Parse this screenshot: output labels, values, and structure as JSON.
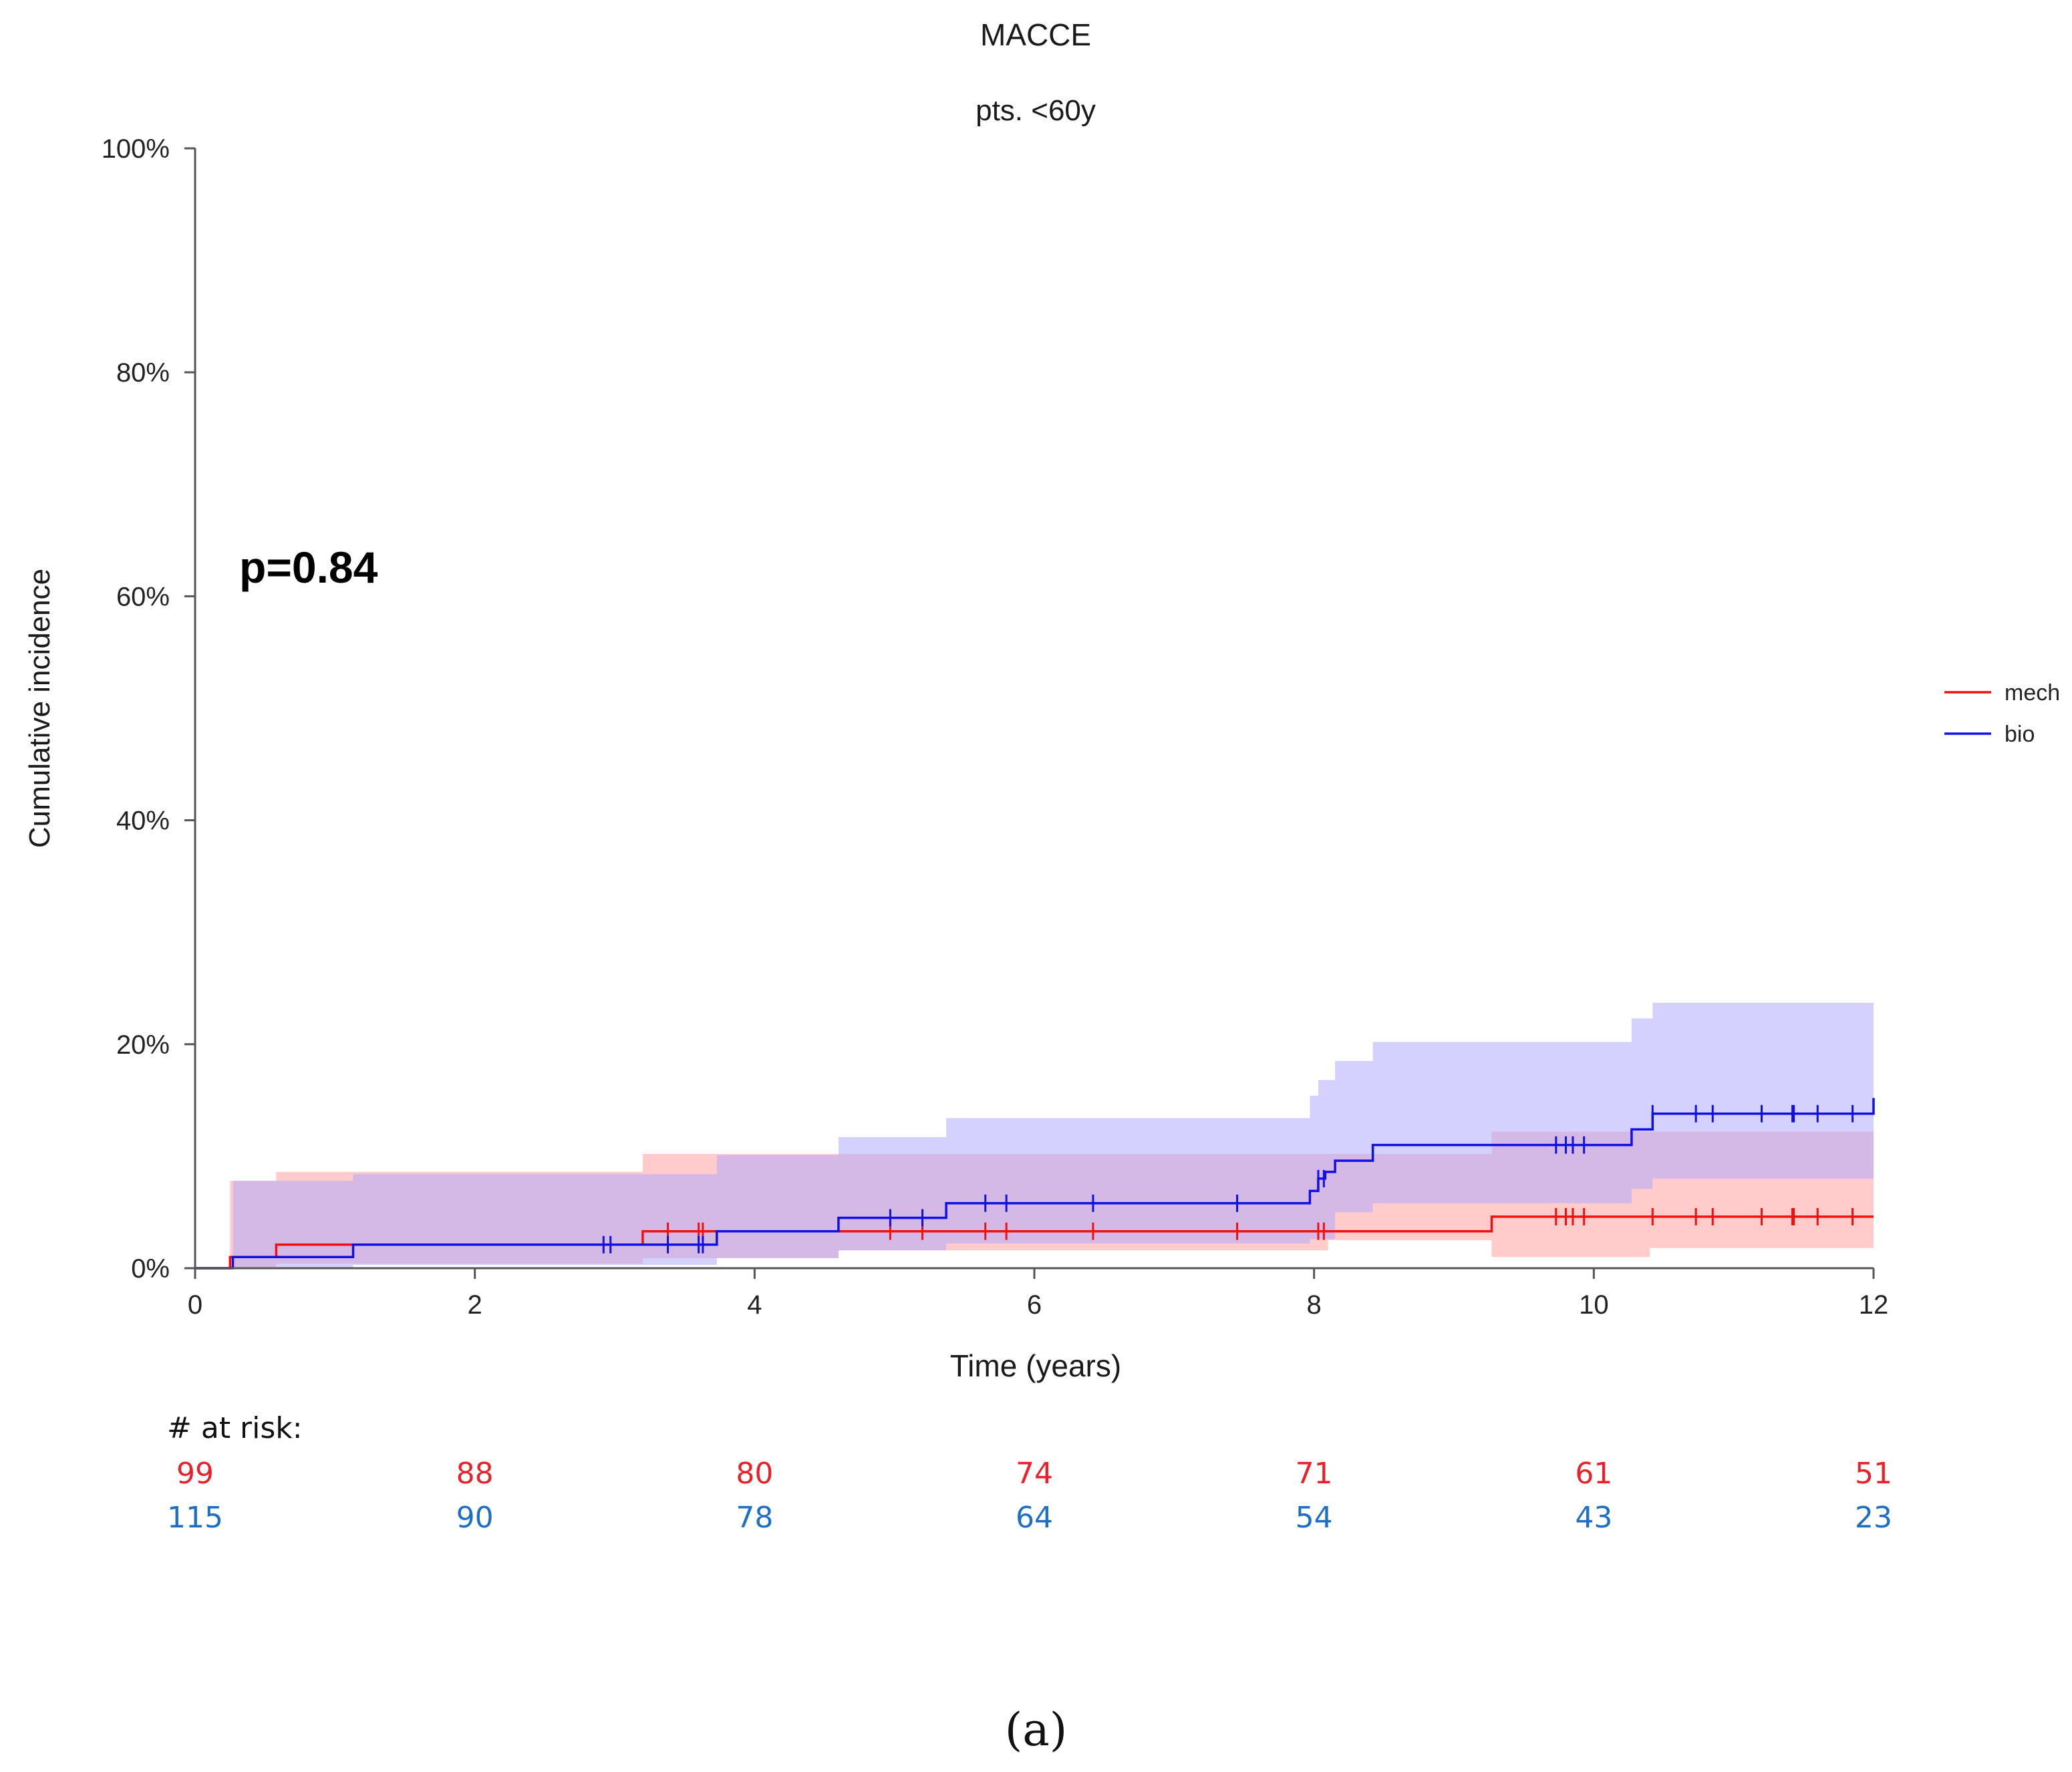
{
  "chart_data": {
    "type": "line",
    "subtype": "cumulative-incidence-step",
    "title": "MACCE",
    "subtitle": "pts. <60y",
    "xlabel": "Time (years)",
    "ylabel": "Cumulative incidence",
    "xlim": [
      0,
      12
    ],
    "ylim": [
      0,
      100
    ],
    "x_ticks": [
      0,
      2,
      4,
      6,
      8,
      10,
      12
    ],
    "y_ticks": [
      0,
      20,
      40,
      60,
      80,
      100
    ],
    "y_tick_labels": [
      "0%",
      "20%",
      "40%",
      "60%",
      "80%",
      "100%"
    ],
    "annotation": "p=0.84",
    "legend": {
      "position": "right",
      "entries": [
        "mech",
        "bio"
      ]
    },
    "series": [
      {
        "name": "mech",
        "color": "#f01010",
        "band_color": "#ffa0a0",
        "steps": [
          [
            0,
            0
          ],
          [
            0.25,
            1.0
          ],
          [
            0.58,
            2.1
          ],
          [
            3.2,
            3.3
          ],
          [
            9.27,
            4.6
          ],
          [
            12,
            4.6
          ]
        ],
        "ci_upper": [
          [
            0,
            0
          ],
          [
            0.25,
            7.8
          ],
          [
            0.58,
            8.6
          ],
          [
            3.2,
            10.2
          ],
          [
            9.27,
            12.2
          ],
          [
            12,
            12.2
          ]
        ],
        "ci_lower": [
          [
            0,
            0
          ],
          [
            0.25,
            0.1
          ],
          [
            0.58,
            0.4
          ],
          [
            3.2,
            0.9
          ],
          [
            4.6,
            1.6
          ],
          [
            8.1,
            2.5
          ],
          [
            9.27,
            1.0
          ],
          [
            10.4,
            1.8
          ],
          [
            12,
            1.8
          ]
        ],
        "censor_times": [
          3.38,
          3.6,
          3.63,
          4.97,
          5.2,
          5.65,
          5.8,
          6.42,
          7.45,
          8.03,
          8.07,
          9.73,
          9.8,
          9.85,
          9.93,
          10.42,
          10.73,
          10.85,
          11.2,
          11.42,
          11.43,
          11.6,
          11.85
        ]
      },
      {
        "name": "bio",
        "color": "#1010e0",
        "band_color": "#b0acff",
        "steps": [
          [
            0,
            0
          ],
          [
            0.27,
            1.0
          ],
          [
            1.13,
            2.1
          ],
          [
            3.73,
            3.3
          ],
          [
            4.6,
            4.5
          ],
          [
            5.37,
            5.8
          ],
          [
            7.97,
            6.9
          ],
          [
            8.03,
            8.0
          ],
          [
            8.08,
            8.6
          ],
          [
            8.15,
            9.6
          ],
          [
            8.42,
            11.0
          ],
          [
            10.27,
            12.4
          ],
          [
            10.42,
            13.8
          ],
          [
            12,
            13.8
          ],
          [
            12,
            15.2
          ]
        ],
        "ci_upper": [
          [
            0,
            0
          ],
          [
            0.27,
            7.8
          ],
          [
            1.13,
            8.4
          ],
          [
            3.73,
            10.1
          ],
          [
            4.6,
            11.7
          ],
          [
            5.37,
            13.4
          ],
          [
            7.97,
            15.4
          ],
          [
            8.03,
            16.8
          ],
          [
            8.15,
            18.5
          ],
          [
            8.42,
            20.2
          ],
          [
            10.27,
            22.3
          ],
          [
            10.42,
            23.7
          ],
          [
            12,
            23.7
          ]
        ],
        "ci_lower": [
          [
            0,
            0
          ],
          [
            0.27,
            0.0
          ],
          [
            1.13,
            0.3
          ],
          [
            3.73,
            0.9
          ],
          [
            4.6,
            1.6
          ],
          [
            5.37,
            2.2
          ],
          [
            7.97,
            2.6
          ],
          [
            8.15,
            5.0
          ],
          [
            8.42,
            5.8
          ],
          [
            10.27,
            7.1
          ],
          [
            10.42,
            8.0
          ],
          [
            12,
            8.0
          ]
        ],
        "censor_times": [
          2.92,
          2.97,
          3.38,
          3.6,
          3.63,
          4.97,
          5.2,
          5.65,
          5.8,
          6.42,
          7.45,
          8.03,
          8.07,
          9.73,
          9.8,
          9.85,
          9.93,
          10.42,
          10.73,
          10.85,
          11.2,
          11.42,
          11.43,
          11.6,
          11.85
        ]
      }
    ],
    "at_risk": {
      "title": "# at risk:",
      "times": [
        0,
        2,
        4,
        6,
        8,
        10,
        12
      ],
      "rows": [
        {
          "name": "mech",
          "color": "#e8212a",
          "values": [
            "99",
            "88",
            "80",
            "74",
            "71",
            "61",
            "51"
          ]
        },
        {
          "name": "bio",
          "color": "#1d6fc4",
          "values": [
            "115",
            "90",
            "78",
            "64",
            "54",
            "43",
            "23"
          ]
        }
      ]
    }
  },
  "panel_label": "(a)"
}
